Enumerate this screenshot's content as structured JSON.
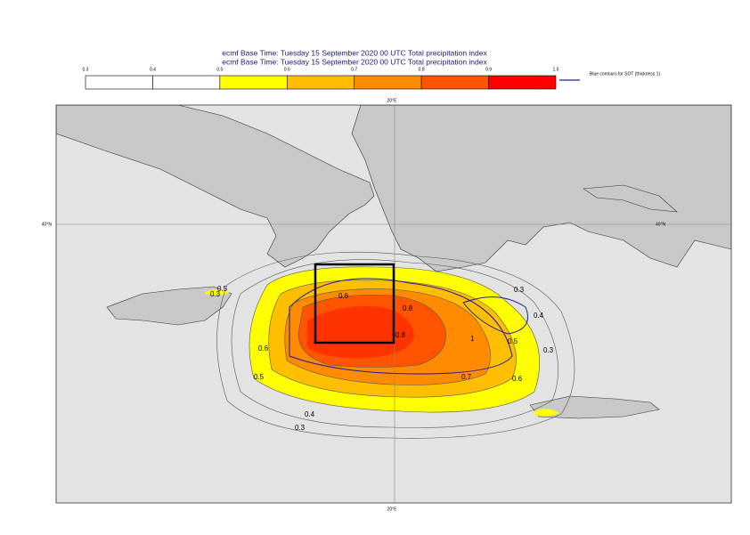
{
  "header": {
    "line1": "ecmf  Base Time: Tuesday 15 September 2020 00 UTC Total precipitation index",
    "line2": "ecmf  Base Time: Tuesday 15 September 2020 00 UTC Total precipitation index"
  },
  "colorbar": {
    "ticks": [
      "0.3",
      "0.4",
      "0.5",
      "0.6",
      "0.7",
      "0.8",
      "0.9",
      "1.5"
    ],
    "colors": [
      "#ffffff",
      "#ffffff",
      "#ffff00",
      "#ffbf00",
      "#ff8c00",
      "#ff5500",
      "#ff0000"
    ]
  },
  "legend": {
    "text": "Blue contours for SOT (thickness 1)",
    "color": "#1a1aa6"
  },
  "map": {
    "lon_label": "20°E",
    "lat_label": "40°N",
    "contour_labels": [
      "0.3",
      "0.5",
      "0.6",
      "0.8",
      "0.8",
      "1",
      "0.7",
      "0.6",
      "0.5",
      "0.4",
      "0.3",
      "0.3",
      "0.6",
      "0.5",
      "0.4",
      "0.3"
    ]
  }
}
